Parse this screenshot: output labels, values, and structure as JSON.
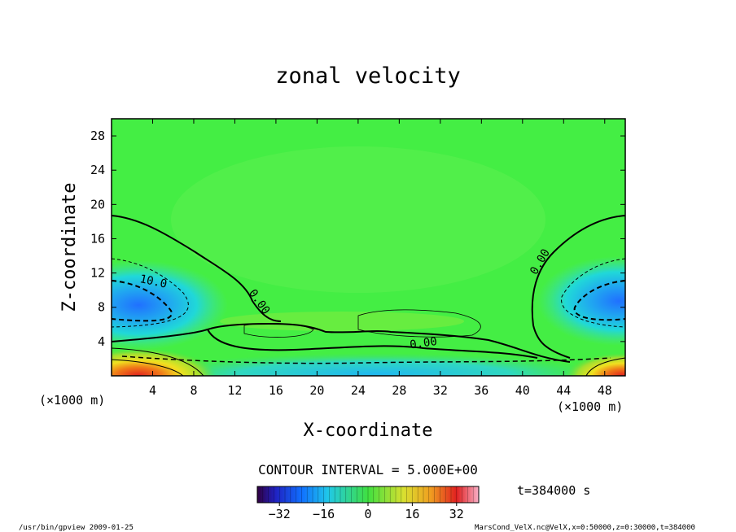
{
  "chart_data": {
    "type": "heatmap",
    "title": "zonal velocity",
    "xlabel": "X-coordinate",
    "ylabel": "Z-coordinate",
    "x_unit_left": "(×1000 m)",
    "x_unit_right": "(×1000 m)",
    "xlim": [
      0,
      50
    ],
    "ylim": [
      0,
      30
    ],
    "xticks": [
      4,
      8,
      12,
      16,
      20,
      24,
      28,
      32,
      36,
      40,
      44,
      48
    ],
    "yticks": [
      4,
      8,
      12,
      16,
      20,
      24,
      28
    ],
    "contour_interval_text": "CONTOUR INTERVAL = 5.000E+00",
    "contour_labels": [
      {
        "text": "10.0",
        "x": 4.0,
        "y": 10.6,
        "rot": 12
      },
      {
        "text": "0.00",
        "x": 14.1,
        "y": 8.4,
        "rot": 55
      },
      {
        "text": "0.00",
        "x": 30.4,
        "y": 3.4,
        "rot": -8
      },
      {
        "text": "0.00",
        "x": 42.0,
        "y": 13.1,
        "rot": -60
      }
    ],
    "colorbar": {
      "range": [
        -40,
        40
      ],
      "ticks": [
        -32,
        -16,
        0,
        16,
        32
      ],
      "tick_labels": [
        "−32",
        "−16",
        "0",
        "16",
        "32"
      ]
    },
    "time_label": "t=384000 s",
    "grid": false,
    "legend": "none"
  },
  "footer": {
    "left": "/usr/bin/gpview  2009-01-25",
    "right": "MarsCond_VelX.nc@VelX,x=0:50000,z=0:30000,t=384000"
  },
  "colors": {
    "background": "#ffffff",
    "zero_field": "#44ee44",
    "frame": "#000000"
  }
}
